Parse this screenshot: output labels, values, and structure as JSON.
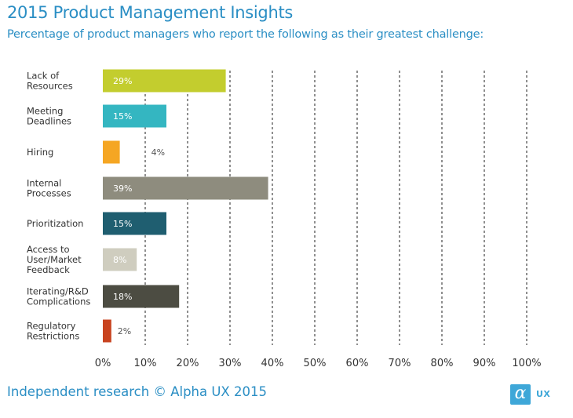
{
  "chart_data": {
    "type": "bar",
    "orientation": "horizontal",
    "title": "2015 Product Management  Insights",
    "subtitle": "Percentage of product managers who report the following as their greatest challenge:",
    "categories": [
      [
        "Lack of",
        "Resources"
      ],
      [
        "Meeting",
        "Deadlines"
      ],
      [
        "Hiring"
      ],
      [
        "Internal",
        "Processes"
      ],
      [
        "Prioritization"
      ],
      [
        "Access to",
        "User/Market",
        "Feedback"
      ],
      [
        "Iterating/R&D",
        "Complications"
      ],
      [
        "Regulatory",
        "Restrictions"
      ]
    ],
    "values": [
      29,
      15,
      4,
      39,
      15,
      8,
      18,
      2
    ],
    "value_labels": [
      "29%",
      "15%",
      "4%",
      "39%",
      "15%",
      "8%",
      "18%",
      "2%"
    ],
    "colors": [
      "#c3cd2e",
      "#34b6c1",
      "#f5a623",
      "#8e8c7e",
      "#1f5e70",
      "#cfcdbf",
      "#4c4c42",
      "#c8431f"
    ],
    "xlim": [
      0,
      100
    ],
    "xticks": [
      0,
      10,
      20,
      30,
      40,
      50,
      60,
      70,
      80,
      90,
      100
    ],
    "xtick_labels": [
      "0%",
      "10%",
      "20%",
      "30%",
      "40%",
      "50%",
      "60%",
      "70%",
      "80%",
      "90%",
      "100%"
    ],
    "grid": "vertical dashed",
    "footer": "Independent research © Alpha UX 2015"
  },
  "logo": {
    "symbol": "α",
    "text": "UX",
    "color": "#3ea7d8"
  }
}
